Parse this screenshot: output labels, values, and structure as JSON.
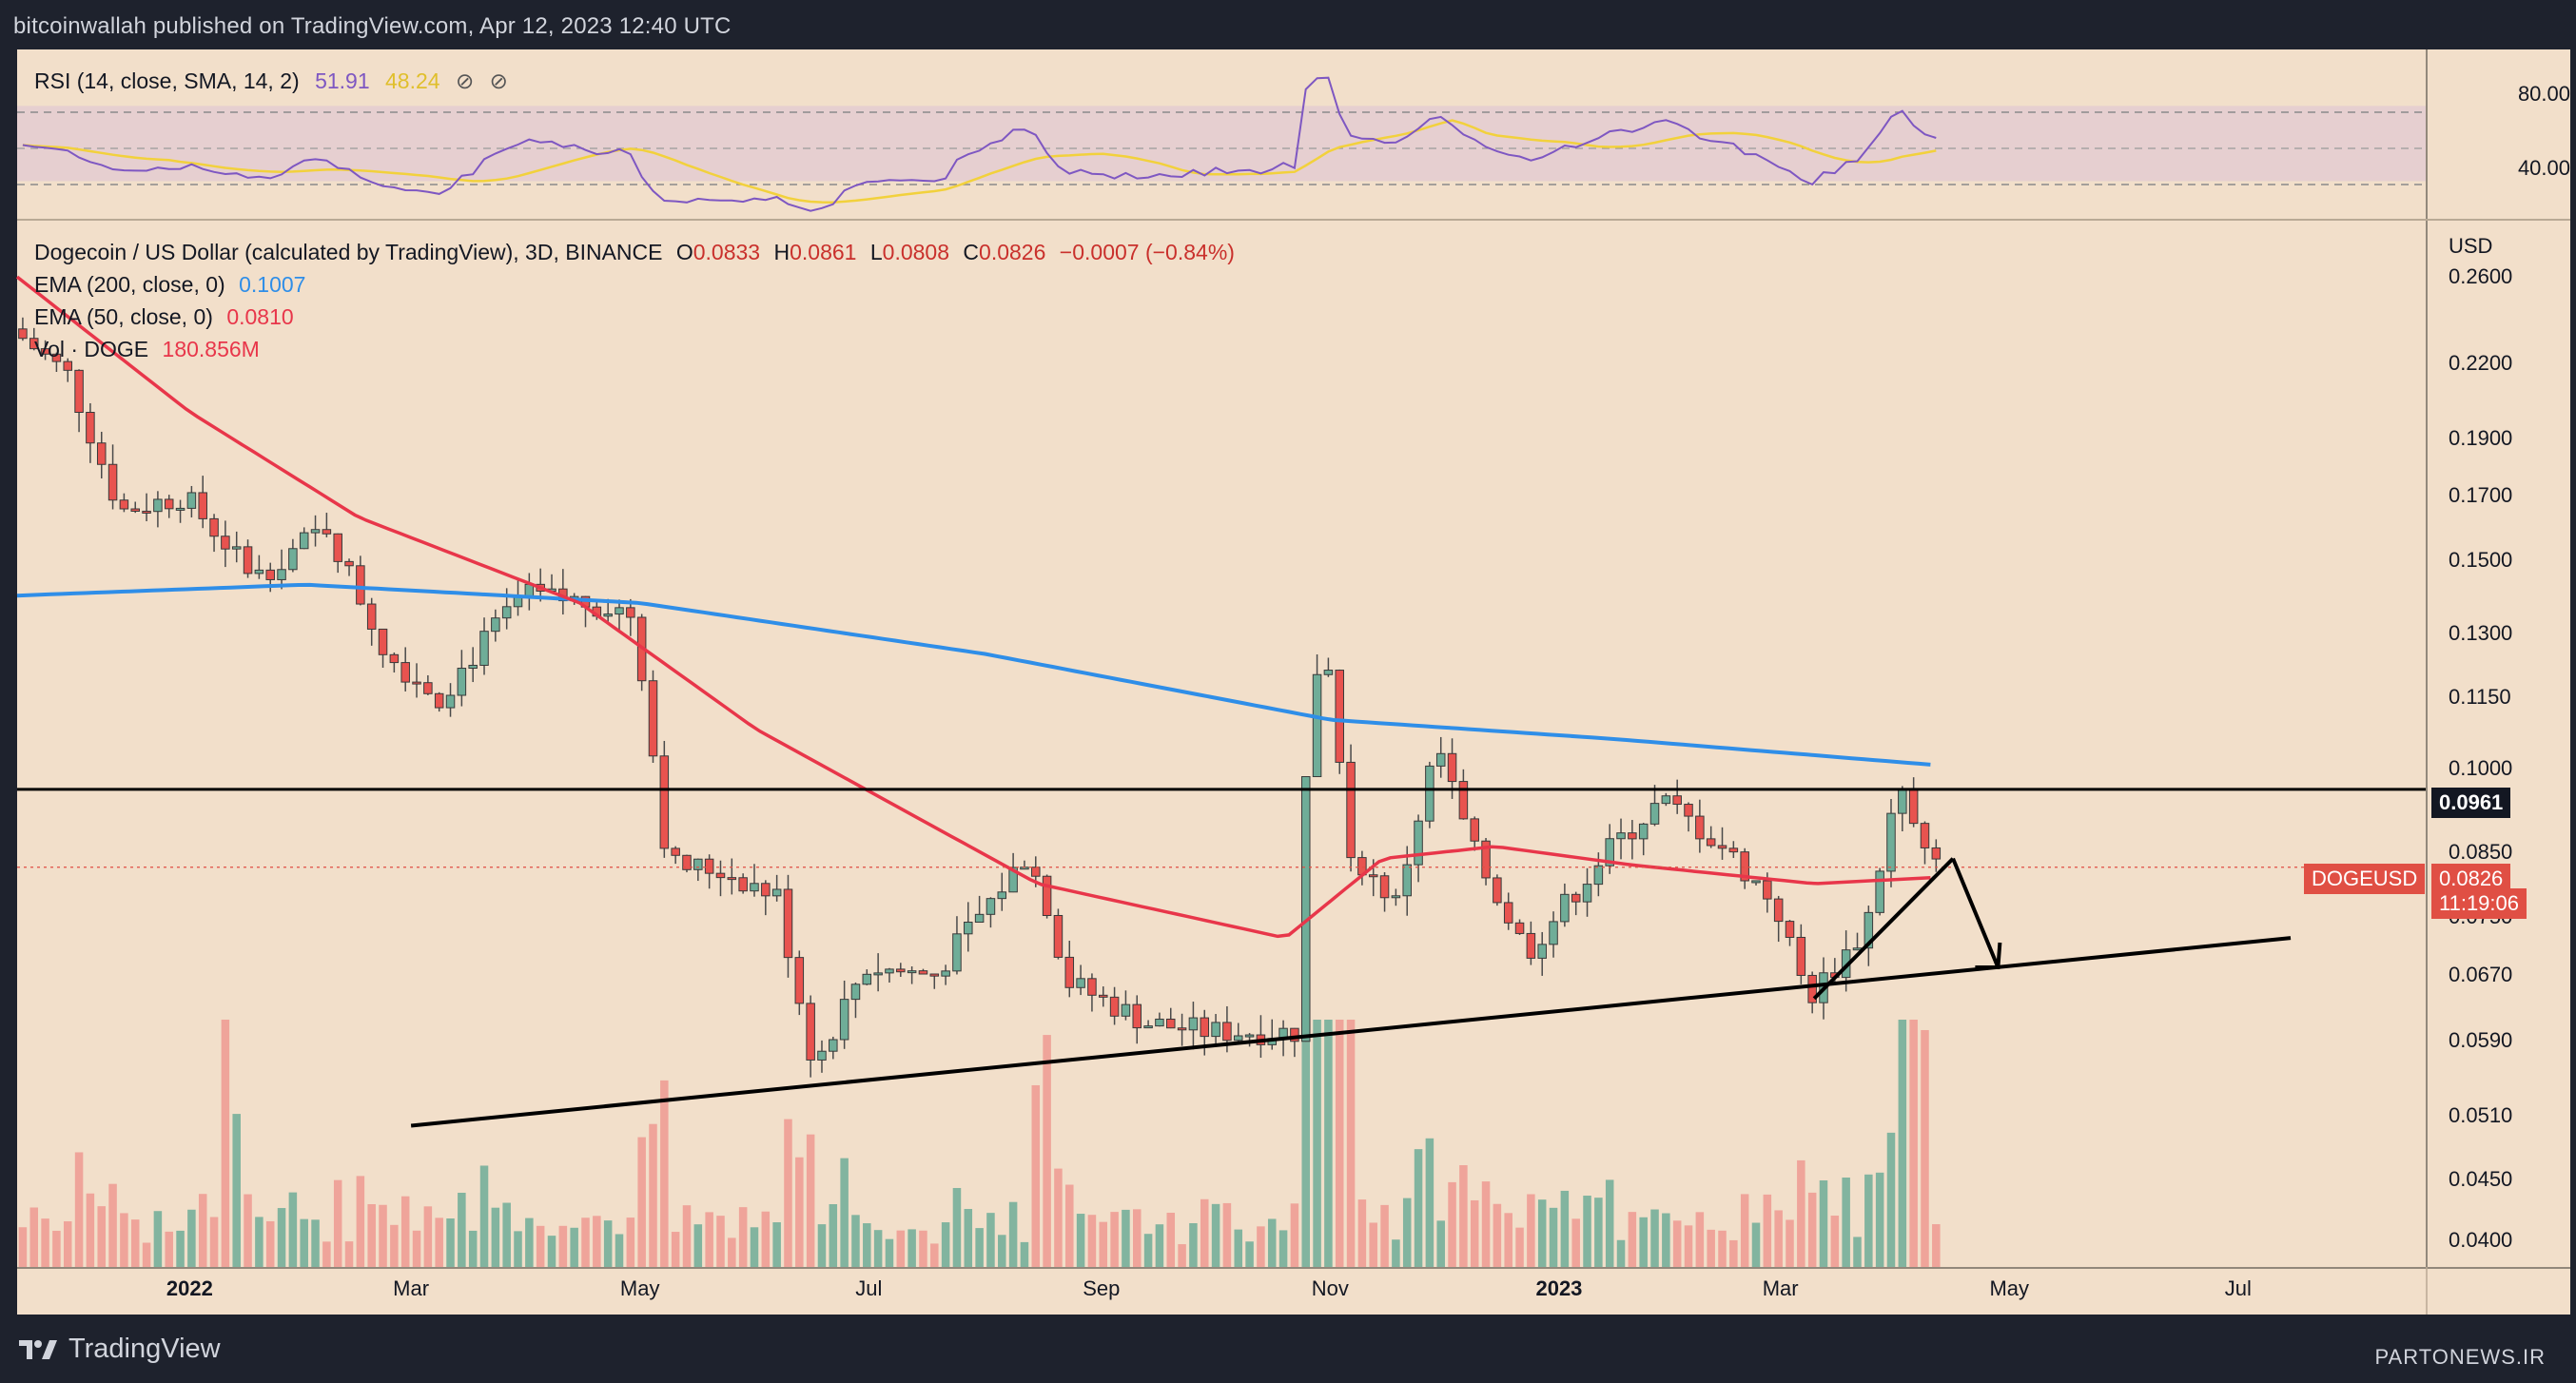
{
  "header": {
    "published_text": "bitcoinwallah published on TradingView.com, Apr 12, 2023 12:40 UTC"
  },
  "footer": {
    "brand": "TradingView",
    "watermark": "PARTONEWS.IR"
  },
  "colors": {
    "background_outer": "#1e222d",
    "pane_background": "#f2dfca",
    "up_candle": "#6fad98",
    "down_candle": "#e8534f",
    "ema200": "#2f8ee8",
    "ema50": "#e8364a",
    "rsi_line": "#7e57c2",
    "rsi_sma": "#f2d13c",
    "rsi_band": "#e6cfd0",
    "current_price_tag": "#e04f44",
    "level_tag": "#131722"
  },
  "rsi_pane": {
    "legend_name": "RSI (14, close, SMA, 14, 2)",
    "value_rsi": "51.91",
    "value_sma": "48.24",
    "icons": [
      "eye-off-icon",
      "eye-off-icon"
    ],
    "axis_labels": [
      "80.00",
      "40.00"
    ],
    "upper_band": 70,
    "lower_band": 30,
    "middle_band": 50
  },
  "main_pane": {
    "symbol_line": "Dogecoin / US Dollar (calculated by TradingView), 3D, BINANCE",
    "ohlc": {
      "o_label": "O",
      "o": "0.0833",
      "h_label": "H",
      "h": "0.0861",
      "l_label": "L",
      "l": "0.0808",
      "c_label": "C",
      "c": "0.0826",
      "change": "−0.0007 (−0.84%)"
    },
    "ema200_label": "EMA (200, close, 0)",
    "ema200_value": "0.1007",
    "ema50_label": "EMA (50, close, 0)",
    "ema50_value": "0.0810",
    "vol_label": "Vol · DOGE",
    "vol_value": "180.856M",
    "currency": "USD",
    "price_axis_labels": [
      "0.2600",
      "0.2200",
      "0.1900",
      "0.1700",
      "0.1500",
      "0.1300",
      "0.1150",
      "0.1000",
      "0.0850",
      "0.0750",
      "0.0670",
      "0.0590",
      "0.0510",
      "0.0450",
      "0.0400"
    ],
    "horizontal_level": "0.0961",
    "current_price_tag": {
      "symbol": "DOGEUSD",
      "price": "0.0826",
      "countdown": "11:19:06"
    },
    "time_axis_labels": [
      {
        "text": "2022",
        "bold": true
      },
      {
        "text": "Mar",
        "bold": false
      },
      {
        "text": "May",
        "bold": false
      },
      {
        "text": "Jul",
        "bold": false
      },
      {
        "text": "Sep",
        "bold": false
      },
      {
        "text": "Nov",
        "bold": false
      },
      {
        "text": "2023",
        "bold": true
      },
      {
        "text": "Mar",
        "bold": false
      },
      {
        "text": "May",
        "bold": false
      },
      {
        "text": "Jul",
        "bold": false
      }
    ]
  },
  "chart_data": {
    "type": "candlestick",
    "timeframe": "3D",
    "scale": "log",
    "y_range": [
      0.038,
      0.29
    ],
    "x_range": [
      "2021-11-16",
      "2023-08-20"
    ],
    "series": {
      "close_path_points": [
        {
          "date": "2021-11-16",
          "close": 0.235
        },
        {
          "date": "2021-12-01",
          "close": 0.215
        },
        {
          "date": "2021-12-15",
          "close": 0.165
        },
        {
          "date": "2022-01-01",
          "close": 0.17
        },
        {
          "date": "2022-01-20",
          "close": 0.145
        },
        {
          "date": "2022-02-08",
          "close": 0.16
        },
        {
          "date": "2022-02-24",
          "close": 0.125
        },
        {
          "date": "2022-03-10",
          "close": 0.115
        },
        {
          "date": "2022-04-01",
          "close": 0.14
        },
        {
          "date": "2022-04-20",
          "close": 0.138
        },
        {
          "date": "2022-05-01",
          "close": 0.135
        },
        {
          "date": "2022-05-10",
          "close": 0.083
        },
        {
          "date": "2022-05-25",
          "close": 0.082
        },
        {
          "date": "2022-06-08",
          "close": 0.078
        },
        {
          "date": "2022-06-18",
          "close": 0.056
        },
        {
          "date": "2022-07-01",
          "close": 0.068
        },
        {
          "date": "2022-07-20",
          "close": 0.067
        },
        {
          "date": "2022-08-14",
          "close": 0.085
        },
        {
          "date": "2022-08-25",
          "close": 0.066
        },
        {
          "date": "2022-09-15",
          "close": 0.061
        },
        {
          "date": "2022-10-01",
          "close": 0.06
        },
        {
          "date": "2022-10-24",
          "close": 0.06
        },
        {
          "date": "2022-10-28",
          "close": 0.115
        },
        {
          "date": "2022-11-01",
          "close": 0.128
        },
        {
          "date": "2022-11-08",
          "close": 0.085
        },
        {
          "date": "2022-11-20",
          "close": 0.077
        },
        {
          "date": "2022-12-01",
          "close": 0.105
        },
        {
          "date": "2022-12-10",
          "close": 0.086
        },
        {
          "date": "2022-12-25",
          "close": 0.07
        },
        {
          "date": "2023-01-15",
          "close": 0.085
        },
        {
          "date": "2023-01-30",
          "close": 0.094
        },
        {
          "date": "2023-02-15",
          "close": 0.086
        },
        {
          "date": "2023-03-01",
          "close": 0.077
        },
        {
          "date": "2023-03-10",
          "close": 0.064
        },
        {
          "date": "2023-03-25",
          "close": 0.073
        },
        {
          "date": "2023-04-03",
          "close": 0.097
        },
        {
          "date": "2023-04-12",
          "close": 0.0826
        }
      ],
      "ema200_points": [
        {
          "date": "2021-11-16",
          "value": 0.14
        },
        {
          "date": "2022-02-01",
          "value": 0.143
        },
        {
          "date": "2022-05-01",
          "value": 0.138
        },
        {
          "date": "2022-08-01",
          "value": 0.125
        },
        {
          "date": "2022-11-01",
          "value": 0.11
        },
        {
          "date": "2023-01-15",
          "value": 0.106
        },
        {
          "date": "2023-04-12",
          "value": 0.1007
        }
      ],
      "ema50_points": [
        {
          "date": "2021-11-16",
          "value": 0.26
        },
        {
          "date": "2022-01-01",
          "value": 0.2
        },
        {
          "date": "2022-02-15",
          "value": 0.163
        },
        {
          "date": "2022-04-15",
          "value": 0.138
        },
        {
          "date": "2022-06-01",
          "value": 0.108
        },
        {
          "date": "2022-08-15",
          "value": 0.08
        },
        {
          "date": "2022-10-20",
          "value": 0.072
        },
        {
          "date": "2022-11-15",
          "value": 0.084
        },
        {
          "date": "2022-12-15",
          "value": 0.086
        },
        {
          "date": "2023-01-20",
          "value": 0.083
        },
        {
          "date": "2023-03-10",
          "value": 0.08
        },
        {
          "date": "2023-04-12",
          "value": 0.081
        }
      ]
    },
    "annotations": {
      "horizontal_resistance": 0.0961,
      "ascending_support": [
        {
          "date": "2022-03-01",
          "price": 0.05
        },
        {
          "date": "2023-07-15",
          "price": 0.072
        }
      ],
      "rising_trendline": [
        {
          "date": "2023-03-10",
          "price": 0.064
        },
        {
          "date": "2023-04-16",
          "price": 0.084
        }
      ],
      "projection_arrow": [
        {
          "date": "2023-04-16",
          "price": 0.084
        },
        {
          "date": "2023-04-28",
          "price": 0.068
        }
      ]
    }
  }
}
